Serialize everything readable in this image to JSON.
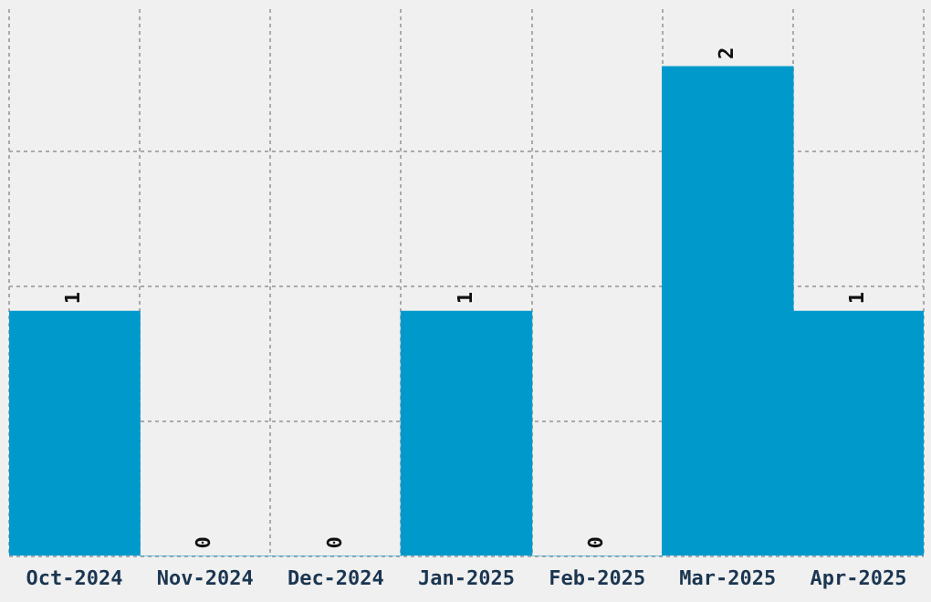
{
  "chart_data": {
    "type": "bar",
    "categories": [
      "Oct-2024",
      "Nov-2024",
      "Dec-2024",
      "Jan-2025",
      "Feb-2025",
      "Mar-2025",
      "Apr-2025"
    ],
    "values": [
      1,
      0,
      0,
      1,
      0,
      2,
      1
    ],
    "color": "#0099cc",
    "ylim": [
      0,
      2.235
    ],
    "yticks": [
      {
        "value": 0,
        "label": null
      },
      {
        "value": 0.551,
        "label": null
      },
      {
        "value": 1.103,
        "label": null
      },
      {
        "value": 1.654,
        "label": null
      }
    ],
    "tick_labels": "x",
    "grid": true,
    "legend": false,
    "data_labels": true
  }
}
